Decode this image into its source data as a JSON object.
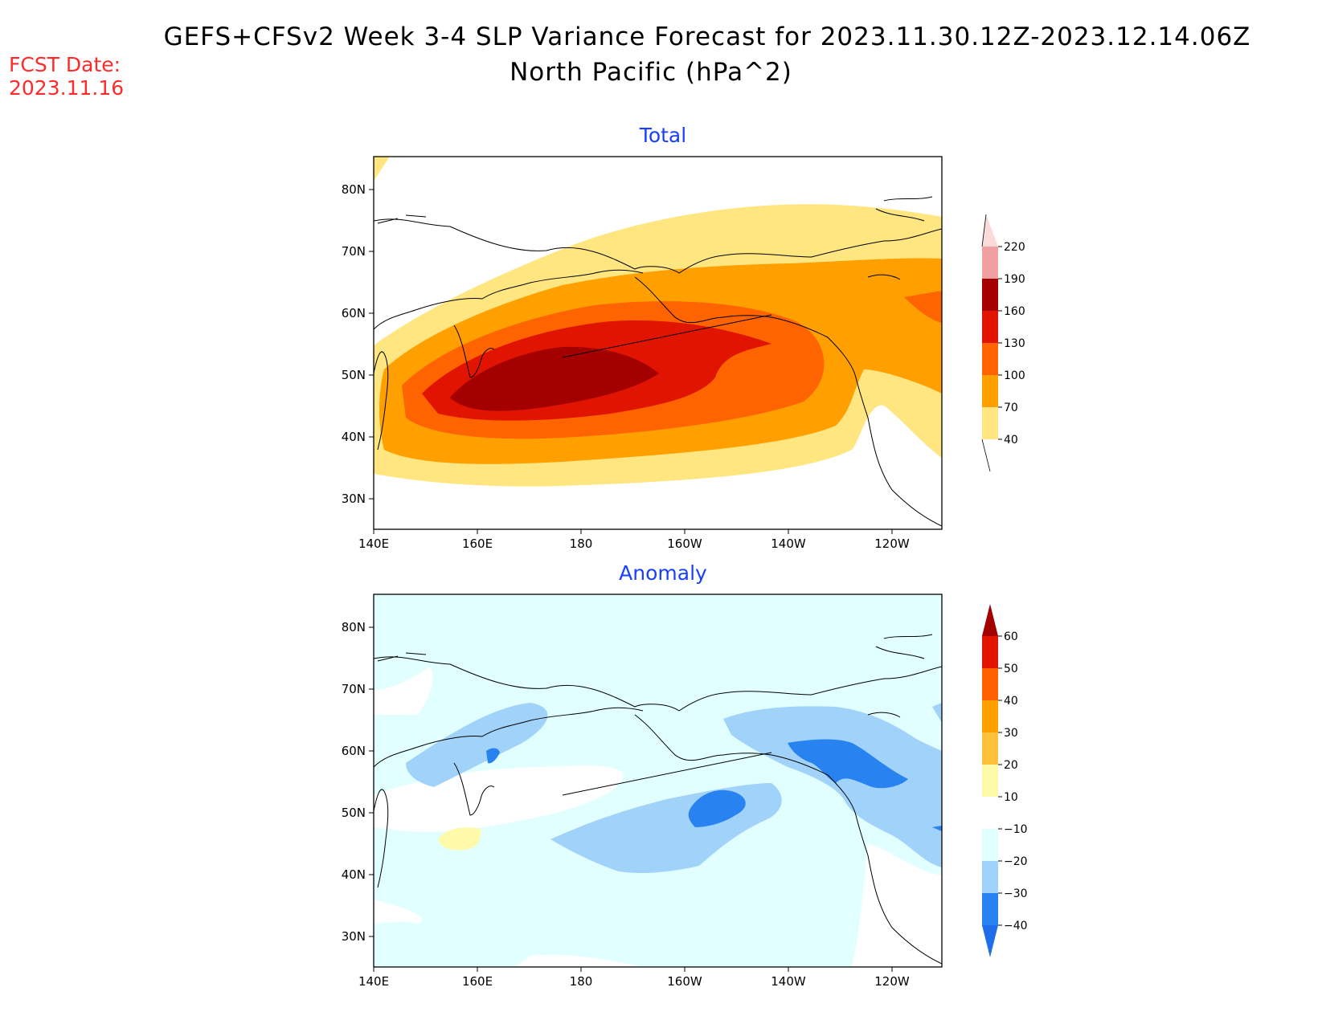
{
  "header": {
    "title_line1": "GEFS+CFSv2 Week 3-4 SLP Variance Forecast for 2023.11.30.12Z-2023.12.14.06Z",
    "title_line2": "North Pacific (hPa^2)",
    "fcst_label": "FCST Date:",
    "fcst_date": "2023.11.16"
  },
  "chart_data": [
    {
      "type": "heatmap",
      "title": "Total",
      "x_ticks": [
        "140E",
        "160E",
        "180",
        "160W",
        "140W",
        "120W"
      ],
      "y_ticks": [
        "80N",
        "70N",
        "60N",
        "50N",
        "40N",
        "30N"
      ],
      "xlim": [
        "140E",
        "110W"
      ],
      "ylim": [
        "25N",
        "85N"
      ],
      "colorbar": {
        "levels": [
          40,
          70,
          100,
          130,
          160,
          190,
          220
        ],
        "colors": [
          "#ffe680",
          "#ffa000",
          "#ff6400",
          "#e01400",
          "#a50000",
          "#f0a0a0",
          "#fbdada"
        ]
      },
      "max_region": "~48N, 175E (>160)"
    },
    {
      "type": "heatmap",
      "title": "Anomaly",
      "x_ticks": [
        "140E",
        "160E",
        "180",
        "160W",
        "140W",
        "120W"
      ],
      "y_ticks": [
        "80N",
        "70N",
        "60N",
        "50N",
        "40N",
        "30N"
      ],
      "xlim": [
        "140E",
        "110W"
      ],
      "ylim": [
        "25N",
        "85N"
      ],
      "colorbar": {
        "levels": [
          -40,
          -30,
          -20,
          -10,
          10,
          20,
          30,
          40,
          50,
          60
        ],
        "colors": [
          "#1e6eeb",
          "#2882f0",
          "#a0d2fa",
          "#e1ffff",
          "#ffffff",
          "#fffaaa",
          "#ffc03c",
          "#ffa000",
          "#ff6000",
          "#e11400",
          "#a50000"
        ]
      }
    }
  ]
}
